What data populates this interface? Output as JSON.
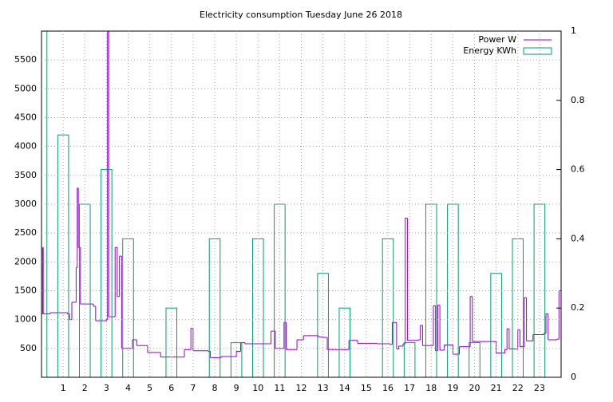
{
  "chart_data": {
    "type": "line",
    "title": "Electricity consumption Tuesday June 26 2018",
    "xlim": [
      0,
      24
    ],
    "xticks": [
      1,
      2,
      3,
      4,
      5,
      6,
      7,
      8,
      9,
      10,
      11,
      12,
      13,
      14,
      15,
      16,
      17,
      18,
      19,
      20,
      21,
      22,
      23
    ],
    "ylim": [
      0,
      6000
    ],
    "yticks": [
      500,
      1000,
      1500,
      2000,
      2500,
      3000,
      3500,
      4000,
      4500,
      5000,
      5500
    ],
    "y2lim": [
      0,
      1
    ],
    "y2ticks": [
      0,
      0.2,
      0.4,
      0.6,
      0.8,
      1
    ],
    "grid": true,
    "legend": "top-right",
    "series": [
      {
        "name": "Power W",
        "color": "#9400d3",
        "style": "steps",
        "x": [
          0.0,
          0.05,
          0.08,
          0.4,
          1.2,
          1.3,
          1.4,
          1.6,
          1.65,
          1.7,
          1.8,
          2.4,
          2.5,
          3.0,
          3.05,
          3.1,
          3.3,
          3.4,
          3.5,
          3.6,
          3.7,
          4.2,
          4.4,
          4.9,
          5.5,
          6.4,
          6.6,
          6.9,
          7.0,
          7.7,
          7.8,
          8.3,
          9.0,
          9.2,
          9.4,
          10.5,
          10.6,
          10.8,
          11.2,
          11.3,
          11.8,
          12.1,
          12.8,
          13.0,
          13.2,
          14.2,
          14.6,
          15.5,
          16.1,
          16.2,
          16.4,
          16.5,
          16.7,
          16.8,
          16.9,
          17.4,
          17.5,
          17.6,
          18.1,
          18.2,
          18.3,
          18.4,
          18.6,
          19.0,
          19.3,
          19.8,
          19.9,
          20.7,
          21.0,
          21.4,
          21.5,
          21.6,
          22.0,
          22.1,
          22.3,
          22.4,
          22.7,
          23.2,
          23.3,
          23.4,
          23.8,
          23.9
        ],
        "values": [
          1100,
          2250,
          1100,
          1120,
          1100,
          1000,
          1300,
          1900,
          3280,
          2250,
          1270,
          1230,
          980,
          1000,
          6000,
          1050,
          1050,
          2250,
          1400,
          2100,
          500,
          650,
          550,
          430,
          350,
          350,
          480,
          850,
          460,
          450,
          340,
          360,
          450,
          600,
          580,
          580,
          800,
          500,
          950,
          480,
          650,
          720,
          700,
          690,
          480,
          640,
          590,
          580,
          570,
          950,
          490,
          540,
          580,
          2760,
          640,
          650,
          900,
          550,
          1240,
          460,
          1250,
          470,
          560,
          400,
          530,
          1400,
          620,
          620,
          420,
          480,
          840,
          490,
          820,
          530,
          1380,
          630,
          740,
          760,
          1100,
          650,
          660,
          1500
        ]
      },
      {
        "name": "Energy KWh",
        "color": "#009e73",
        "style": "boxes",
        "axis": "y2",
        "x": [
          0,
          1,
          2,
          3,
          4,
          6,
          8,
          9,
          10,
          11,
          13,
          14,
          16,
          17,
          18,
          19,
          20,
          21,
          22,
          23
        ],
        "values": [
          1,
          0.7,
          0.5,
          0.6,
          0.4,
          0.2,
          0.4,
          0.1,
          0.4,
          0.5,
          0.3,
          0.2,
          0.4,
          0.1,
          0.5,
          0.5,
          0.1,
          0.3,
          0.4,
          0.5
        ]
      }
    ]
  }
}
